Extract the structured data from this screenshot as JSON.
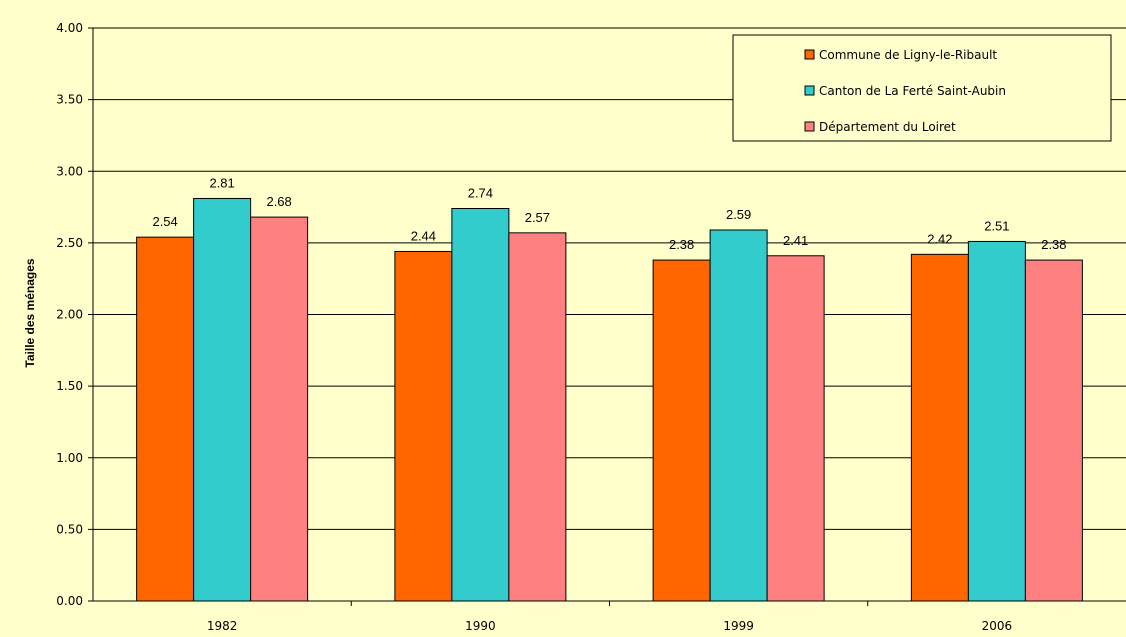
{
  "chart_data": {
    "type": "bar",
    "title": "",
    "xlabel": "",
    "ylabel": "Taille des ménages",
    "ylim": [
      0,
      4
    ],
    "yticks": [
      "0.00",
      "0.50",
      "1.00",
      "1.50",
      "2.00",
      "2.50",
      "3.00",
      "3.50",
      "4.00"
    ],
    "categories": [
      "1982",
      "1990",
      "1999",
      "2006"
    ],
    "series": [
      {
        "name": "Commune de Ligny-le-Ribault",
        "color": "#ff6600",
        "values": [
          2.54,
          2.44,
          2.38,
          2.42
        ],
        "labels": [
          "2.54",
          "2.44",
          "2.38",
          "2.42"
        ]
      },
      {
        "name": "Canton de La Ferté Saint-Aubin",
        "color": "#33cccc",
        "values": [
          2.81,
          2.74,
          2.59,
          2.51
        ],
        "labels": [
          "2.81",
          "2.74",
          "2.59",
          "2.51"
        ]
      },
      {
        "name": "Département du Loiret",
        "color": "#ff8080",
        "values": [
          2.68,
          2.57,
          2.41,
          2.38
        ],
        "labels": [
          "2.68",
          "2.57",
          "2.41",
          "2.38"
        ]
      }
    ],
    "grid": true,
    "legend": "top-right",
    "background": "#ffffcc"
  }
}
